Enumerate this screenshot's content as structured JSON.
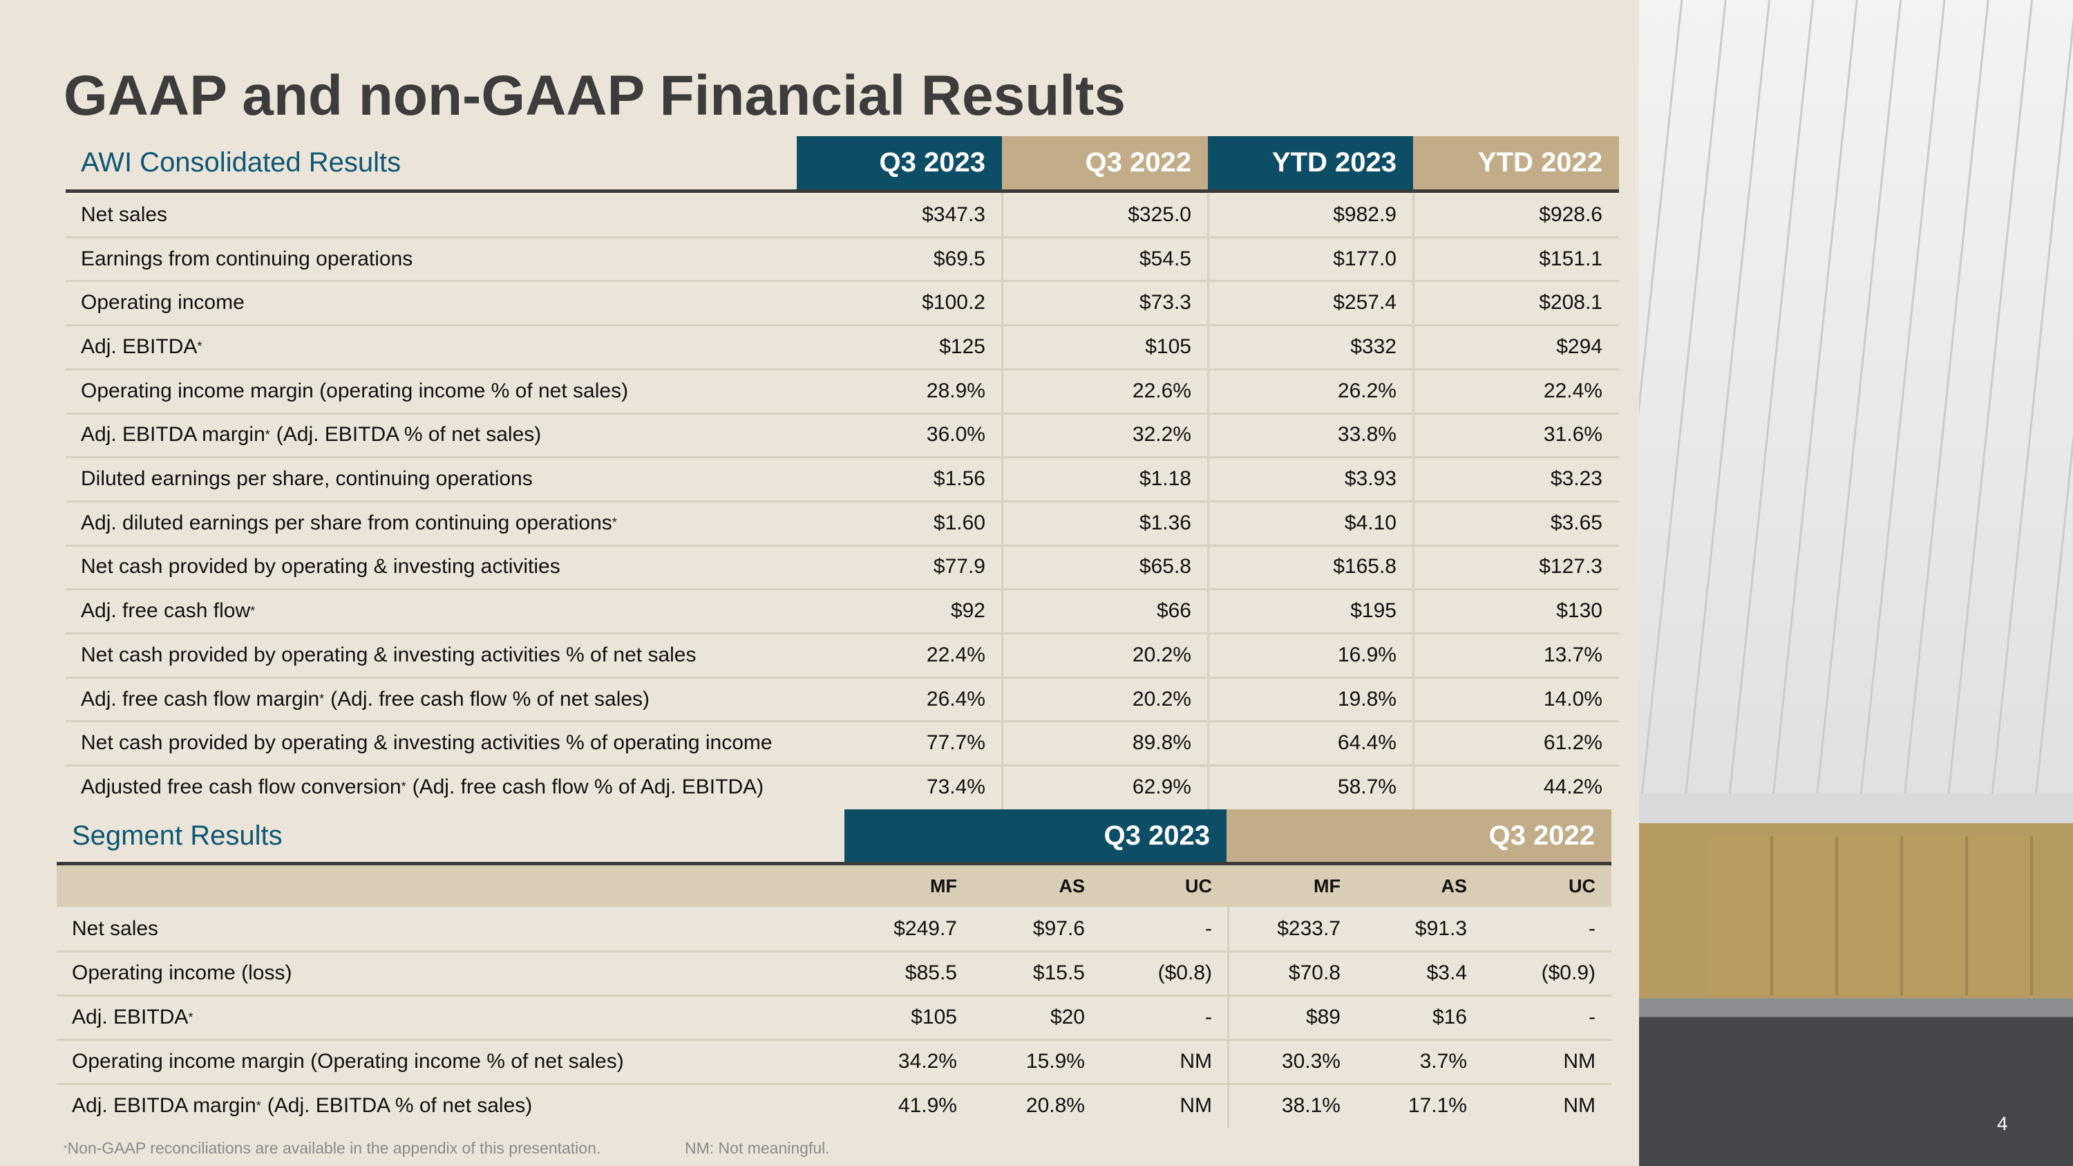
{
  "title": "GAAP and non-GAAP Financial Results",
  "consolidated": {
    "heading": "AWI Consolidated Results",
    "columns": [
      "Q3 2023",
      "Q3 2022",
      "YTD 2023",
      "YTD 2022"
    ],
    "rows": [
      {
        "label": "Net sales",
        "values": [
          "$347.3",
          "$325.0",
          "$982.9",
          "$928.6"
        ]
      },
      {
        "label": "Earnings from continuing operations",
        "values": [
          "$69.5",
          "$54.5",
          "$177.0",
          "$151.1"
        ]
      },
      {
        "label": "Operating income",
        "values": [
          "$100.2",
          "$73.3",
          "$257.4",
          "$208.1"
        ]
      },
      {
        "label": "Adj. EBITDA",
        "sup": "*",
        "values": [
          "$125",
          "$105",
          "$332",
          "$294"
        ]
      },
      {
        "label": "Operating income margin (operating income % of net sales)",
        "values": [
          "28.9%",
          "22.6%",
          "26.2%",
          "22.4%"
        ]
      },
      {
        "label": "Adj. EBITDA margin",
        "sup": "*",
        "suffix": "(Adj. EBITDA % of net sales)",
        "values": [
          "36.0%",
          "32.2%",
          "33.8%",
          "31.6%"
        ]
      },
      {
        "label": "Diluted earnings per share, continuing operations",
        "values": [
          "$1.56",
          "$1.18",
          "$3.93",
          "$3.23"
        ]
      },
      {
        "label": "Adj. diluted earnings per share from continuing operations",
        "sup": "*",
        "values": [
          "$1.60",
          "$1.36",
          "$4.10",
          "$3.65"
        ]
      },
      {
        "label": "Net cash provided by operating & investing activities",
        "values": [
          "$77.9",
          "$65.8",
          "$165.8",
          "$127.3"
        ]
      },
      {
        "label": "Adj. free cash flow",
        "sup": "*",
        "values": [
          "$92",
          "$66",
          "$195",
          "$130"
        ]
      },
      {
        "label": "Net cash provided by operating & investing activities % of net sales",
        "values": [
          "22.4%",
          "20.2%",
          "16.9%",
          "13.7%"
        ]
      },
      {
        "label": "Adj. free cash flow margin",
        "sup": "*",
        "suffix": "(Adj. free cash flow % of net sales)",
        "values": [
          "26.4%",
          "20.2%",
          "19.8%",
          "14.0%"
        ]
      },
      {
        "label": "Net cash provided by operating & investing activities % of operating income",
        "values": [
          "77.7%",
          "89.8%",
          "64.4%",
          "61.2%"
        ]
      },
      {
        "label": "Adjusted free cash flow conversion",
        "sup": "*",
        "suffix": "(Adj. free cash flow % of Adj. EBITDA)",
        "values": [
          "73.4%",
          "62.9%",
          "58.7%",
          "44.2%"
        ]
      }
    ]
  },
  "segment": {
    "heading": "Segment Results",
    "groups": [
      "Q3 2023",
      "Q3 2022"
    ],
    "subcolumns": [
      "MF",
      "AS",
      "UC",
      "MF",
      "AS",
      "UC"
    ],
    "rows": [
      {
        "label": "Net sales",
        "values": [
          "$249.7",
          "$97.6",
          "-",
          "$233.7",
          "$91.3",
          "-"
        ]
      },
      {
        "label": "Operating income (loss)",
        "values": [
          "$85.5",
          "$15.5",
          "($0.8)",
          "$70.8",
          "$3.4",
          "($0.9)"
        ]
      },
      {
        "label": "Adj. EBITDA",
        "sup": "*",
        "values": [
          "$105",
          "$20",
          "-",
          "$89",
          "$16",
          "-"
        ]
      },
      {
        "label": "Operating income margin (Operating income % of net sales)",
        "values": [
          "34.2%",
          "15.9%",
          "NM",
          "30.3%",
          "3.7%",
          "NM"
        ]
      },
      {
        "label": "Adj. EBITDA margin",
        "sup": "*",
        "suffix": "(Adj. EBITDA % of net sales)",
        "values": [
          "41.9%",
          "20.8%",
          "NM",
          "38.1%",
          "17.1%",
          "NM"
        ]
      }
    ]
  },
  "footnotes": {
    "mark": "*",
    "note": "Non-GAAP reconciliations are available in the appendix of this presentation.",
    "nm": "NM: Not meaningful."
  },
  "page_number": "4"
}
